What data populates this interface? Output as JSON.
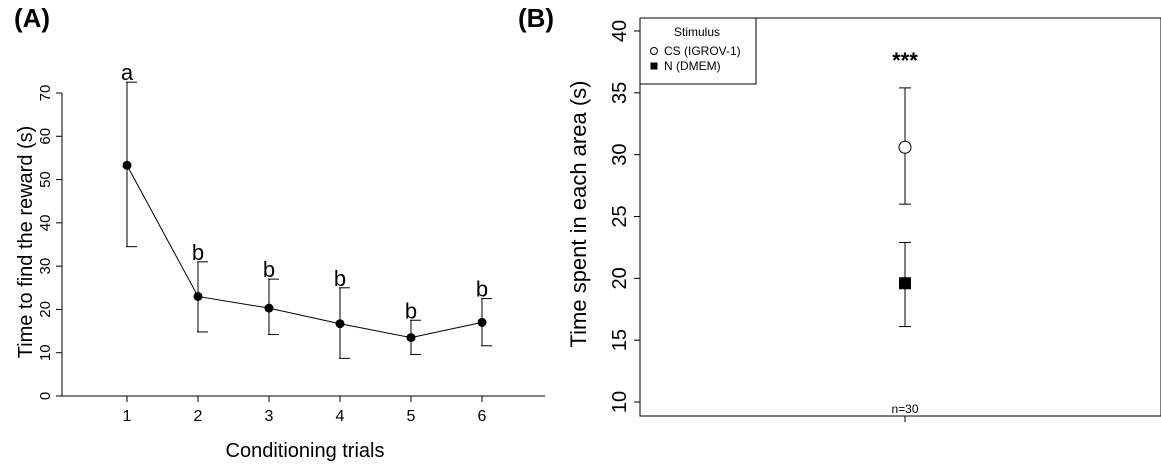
{
  "chart_data": [
    {
      "panel_label": "(A)",
      "type": "line",
      "xlabel": "Conditioning trials",
      "ylabel": "Time to find the reward (s)",
      "ylim": [
        0,
        70
      ],
      "yticks": [
        "0",
        "10",
        "20",
        "30",
        "40",
        "50",
        "60",
        "70"
      ],
      "x": [
        "1",
        "2",
        "3",
        "4",
        "5",
        "6"
      ],
      "series": [
        {
          "values": [
            53.3,
            23.0,
            20.3,
            16.7,
            13.5,
            17.0
          ],
          "error_upper": [
            72.5,
            31.0,
            27.0,
            25.0,
            17.5,
            22.5
          ],
          "error_lower": [
            34.5,
            14.8,
            14.2,
            8.7,
            9.6,
            11.6
          ]
        }
      ],
      "annotations": [
        "a",
        "b",
        "b",
        "b",
        "b",
        "b"
      ],
      "grid": false
    },
    {
      "panel_label": "(B)",
      "type": "scatter",
      "ylabel": "Time spent in each area (s)",
      "ylim": [
        10,
        40
      ],
      "yticks": [
        "10",
        "15",
        "20",
        "25",
        "30",
        "35",
        "40"
      ],
      "x_tick_label": "n=30",
      "legend_title": "Stimulus",
      "legend_position": "top-left",
      "series": [
        {
          "name": "CS (IGROV-1)",
          "marker": "open-circle",
          "value": 30.6,
          "error_upper": 35.4,
          "error_lower": 26.0
        },
        {
          "name": "N (DMEM)",
          "marker": "filled-square",
          "value": 19.6,
          "error_upper": 22.9,
          "error_lower": 16.1
        }
      ],
      "significance": "***",
      "grid": false
    }
  ]
}
